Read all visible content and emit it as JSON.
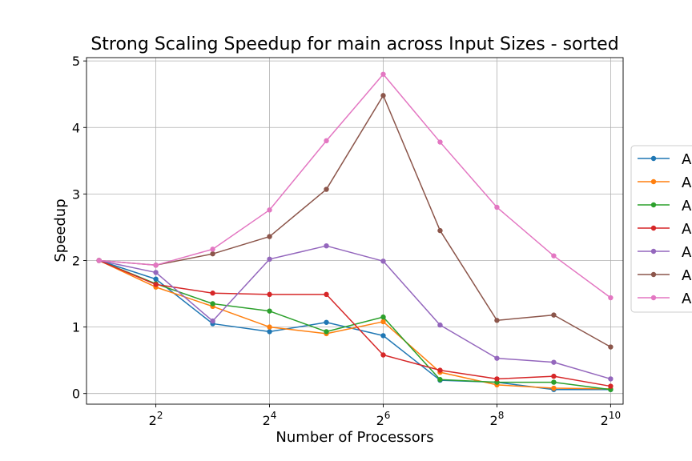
{
  "chart_data": {
    "type": "line",
    "title": "Strong Scaling Speedup for main across Input Sizes - sorted",
    "xlabel": "Number of Processors",
    "ylabel": "Speedup",
    "x_scale": "log2",
    "x": [
      2,
      4,
      8,
      16,
      32,
      64,
      128,
      256,
      512,
      1024
    ],
    "xticks": [
      {
        "value": 4,
        "base": "2",
        "exp": "2"
      },
      {
        "value": 16,
        "base": "2",
        "exp": "4"
      },
      {
        "value": 64,
        "base": "2",
        "exp": "6"
      },
      {
        "value": 256,
        "base": "2",
        "exp": "8"
      },
      {
        "value": 1024,
        "base": "2",
        "exp": "10"
      }
    ],
    "yticks": [
      "0",
      "1",
      "2",
      "3",
      "4",
      "5"
    ],
    "ylim": [
      -0.16,
      5.05
    ],
    "grid": true,
    "legend_position": "right (clipped)",
    "series": [
      {
        "name": "A",
        "color": "#1f77b4",
        "values": [
          2.0,
          1.72,
          1.05,
          0.93,
          1.07,
          0.87,
          0.2,
          0.17,
          0.06,
          0.06
        ]
      },
      {
        "name": "A",
        "color": "#ff7f0e",
        "values": [
          2.0,
          1.6,
          1.31,
          1.0,
          0.9,
          1.08,
          0.32,
          0.13,
          0.08,
          0.07
        ]
      },
      {
        "name": "A",
        "color": "#2ca02c",
        "values": [
          2.0,
          1.65,
          1.35,
          1.24,
          0.93,
          1.15,
          0.21,
          0.17,
          0.17,
          0.06
        ]
      },
      {
        "name": "A",
        "color": "#d62728",
        "values": [
          2.0,
          1.64,
          1.51,
          1.49,
          1.49,
          0.58,
          0.35,
          0.22,
          0.26,
          0.11
        ]
      },
      {
        "name": "A",
        "color": "#9467bd",
        "values": [
          2.0,
          1.82,
          1.09,
          2.02,
          2.22,
          1.99,
          1.03,
          0.53,
          0.47,
          0.22
        ]
      },
      {
        "name": "A",
        "color": "#8c564b",
        "values": [
          2.0,
          1.93,
          2.1,
          2.36,
          3.07,
          4.48,
          2.45,
          1.1,
          1.18,
          0.7
        ]
      },
      {
        "name": "A",
        "color": "#e377c2",
        "values": [
          2.0,
          1.93,
          2.17,
          2.76,
          3.8,
          4.8,
          3.78,
          2.8,
          2.07,
          1.44
        ]
      }
    ]
  }
}
